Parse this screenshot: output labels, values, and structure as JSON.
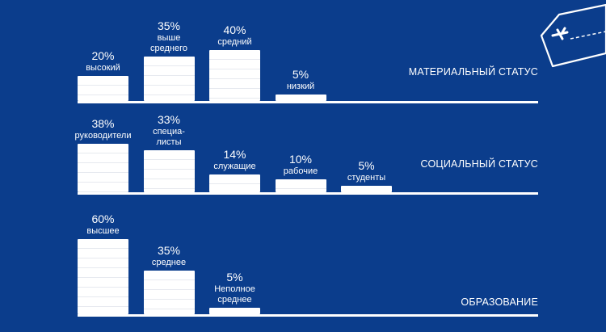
{
  "colors": {
    "background": "#0b3d8c",
    "bars": "#ffffff",
    "text": "#ffffff"
  },
  "decoration": {
    "icon": "airplane-luggage-tag-icon"
  },
  "chart_data": [
    {
      "type": "bar",
      "group_label": "МАТЕРИАЛЬНЫЙ СТАТУС",
      "categories": [
        "высокий",
        "выше\nсреднего",
        "средний",
        "низкий"
      ],
      "values": [
        20,
        35,
        40,
        5
      ],
      "value_labels": [
        "20%",
        "35%",
        "40%",
        "5%"
      ],
      "unit": "%"
    },
    {
      "type": "bar",
      "group_label": "СОЦИАЛЬНЫЙ СТАТУС",
      "categories": [
        "руководители",
        "специа-\nлисты",
        "служащие",
        "рабочие",
        "студенты"
      ],
      "values": [
        38,
        33,
        14,
        10,
        5
      ],
      "value_labels": [
        "38%",
        "33%",
        "14%",
        "10%",
        "5%"
      ],
      "unit": "%"
    },
    {
      "type": "bar",
      "group_label": "ОБРАЗОВАНИЕ",
      "categories": [
        "высшее",
        "среднее",
        "Неполное\nсреднее"
      ],
      "values": [
        60,
        35,
        5
      ],
      "value_labels": [
        "60%",
        "35%",
        "5%"
      ],
      "unit": "%"
    }
  ]
}
